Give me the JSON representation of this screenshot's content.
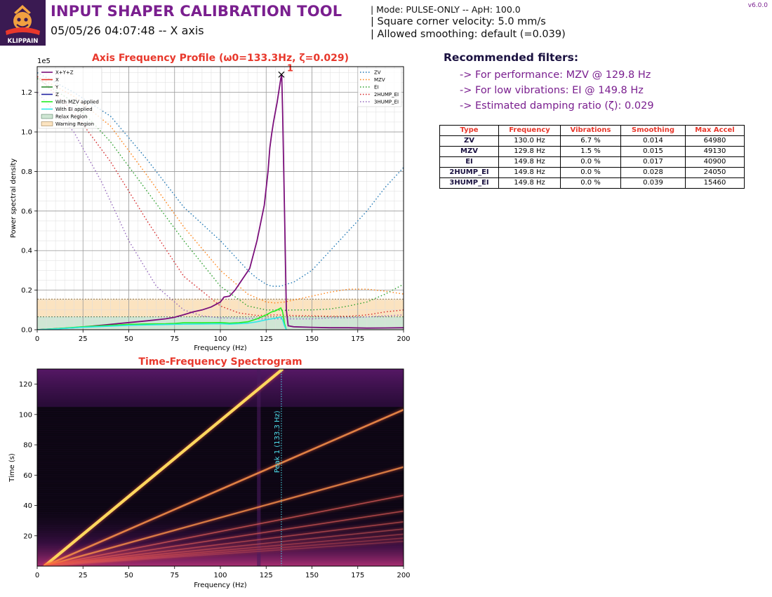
{
  "header": {
    "logo_text": "KLIPPAIN",
    "title": "INPUT SHAPER CALIBRATION TOOL",
    "subtitle": "05/05/26 04:07:48 -- X axis",
    "mode_line": "| Mode: PULSE-ONLY -- ApH: 100.0",
    "scv_line": "| Square corner velocity: 5.0 mm/s",
    "smoothing_line": "| Allowed smoothing: default (=0.039)",
    "version": "v6.0.0"
  },
  "recommendations": {
    "title": "Recommended filters:",
    "items": [
      "-> For performance: MZV @ 129.8 Hz",
      "-> For low vibrations: EI @ 149.8 Hz",
      "-> Estimated damping ratio (ζ): 0.029"
    ]
  },
  "shaper_table": {
    "headers": [
      "Type",
      "Frequency",
      "Vibrations",
      "Smoothing",
      "Max Accel"
    ],
    "rows": [
      [
        "ZV",
        "130.0 Hz",
        "6.7 %",
        "0.014",
        "64980"
      ],
      [
        "MZV",
        "129.8 Hz",
        "1.5 %",
        "0.015",
        "49130"
      ],
      [
        "EI",
        "149.8 Hz",
        "0.0 %",
        "0.017",
        "40900"
      ],
      [
        "2HUMP_EI",
        "149.8 Hz",
        "0.0 %",
        "0.028",
        "24050"
      ],
      [
        "3HUMP_EI",
        "149.8 Hz",
        "0.0 %",
        "0.039",
        "15460"
      ]
    ]
  },
  "colors": {
    "title_purple": "#7a1f8f",
    "chart_title_red": "#e8382c",
    "xyz": "#7b0f7b",
    "x": "#e8382c",
    "y": "#2e8b2e",
    "z": "#1f1fa0",
    "mzv_applied": "#22ee22",
    "ei_applied": "#2ee8e8",
    "relax_region": "#cfe6d4",
    "warning_region": "#fbe3c0",
    "zv": "#1f77b4",
    "mzv": "#ff7f0e",
    "ei": "#2ca02c",
    "2hump_ei": "#d62728",
    "3hump_ei": "#9467bd"
  },
  "chart_data": [
    {
      "type": "line",
      "title": "Axis Frequency Profile (ω0=133.3Hz, ζ=0.029)",
      "xlabel": "Frequency (Hz)",
      "ylabel": "Power spectral density",
      "y_exponent": "1e5",
      "xlim": [
        0,
        200
      ],
      "ylim": [
        0,
        1.33
      ],
      "x_ticks": [
        0,
        25,
        50,
        75,
        100,
        125,
        150,
        175,
        200
      ],
      "y_ticks": [
        0.0,
        0.2,
        0.4,
        0.6,
        0.8,
        1.0,
        1.2
      ],
      "grid": true,
      "legend_left": [
        "X+Y+Z",
        "X",
        "Y",
        "Z",
        "With MZV applied",
        "With EI applied",
        "Relax Region",
        "Warning Region"
      ],
      "legend_right": [
        "ZV",
        "MZV",
        "EI",
        "2HUMP_EI",
        "3HUMP_EI"
      ],
      "regions": {
        "relax": [
          0,
          0.065
        ],
        "warning": [
          0.065,
          0.155
        ]
      },
      "peak": {
        "label": "1",
        "x": 133.3,
        "y": 1.29
      },
      "series": [
        {
          "name": "X+Y+Z",
          "x": [
            0,
            10,
            20,
            30,
            40,
            50,
            60,
            70,
            75,
            80,
            85,
            90,
            95,
            100,
            102,
            105,
            108,
            112,
            116,
            120,
            124,
            126,
            127,
            128,
            129,
            130,
            131,
            132,
            133,
            133.5,
            134,
            135,
            136,
            137,
            140,
            150,
            160,
            170,
            180,
            190,
            200
          ],
          "y": [
            0.0,
            0.005,
            0.01,
            0.018,
            0.027,
            0.036,
            0.045,
            0.055,
            0.063,
            0.076,
            0.09,
            0.1,
            0.115,
            0.14,
            0.165,
            0.17,
            0.2,
            0.255,
            0.31,
            0.45,
            0.63,
            0.8,
            0.92,
            0.99,
            1.05,
            1.1,
            1.15,
            1.21,
            1.27,
            1.29,
            1.1,
            0.6,
            0.1,
            0.02,
            0.015,
            0.012,
            0.01,
            0.01,
            0.008,
            0.009,
            0.01
          ]
        },
        {
          "name": "With MZV applied",
          "x": [
            0,
            10,
            25,
            40,
            50,
            60,
            70,
            75,
            80,
            90,
            100,
            105,
            110,
            115,
            120,
            125,
            128,
            130,
            133,
            134,
            135,
            136
          ],
          "y": [
            0.0,
            0.005,
            0.015,
            0.022,
            0.027,
            0.029,
            0.03,
            0.032,
            0.035,
            0.035,
            0.036,
            0.033,
            0.035,
            0.04,
            0.055,
            0.075,
            0.09,
            0.095,
            0.11,
            0.09,
            0.03,
            0.0
          ]
        },
        {
          "name": "With EI applied",
          "x": [
            0,
            10,
            25,
            40,
            50,
            60,
            70,
            80,
            90,
            100,
            105,
            110,
            115,
            120,
            125,
            128,
            130,
            133,
            134,
            135,
            136
          ],
          "y": [
            0.0,
            0.004,
            0.012,
            0.018,
            0.022,
            0.024,
            0.026,
            0.028,
            0.029,
            0.03,
            0.028,
            0.03,
            0.033,
            0.04,
            0.05,
            0.055,
            0.058,
            0.065,
            0.05,
            0.02,
            0.0
          ]
        },
        {
          "name": "ZV",
          "x": [
            0,
            20,
            40,
            60,
            80,
            100,
            115,
            120,
            125,
            128,
            130,
            133,
            136,
            140,
            150,
            160,
            170,
            180,
            190,
            200
          ],
          "y": [
            1.3,
            1.2,
            1.08,
            0.86,
            0.62,
            0.45,
            0.3,
            0.26,
            0.23,
            0.22,
            0.22,
            0.22,
            0.23,
            0.24,
            0.3,
            0.4,
            0.5,
            0.6,
            0.72,
            0.82
          ]
        },
        {
          "name": "MZV",
          "x": [
            0,
            20,
            40,
            60,
            80,
            100,
            115,
            125,
            130,
            135,
            140,
            150,
            160,
            170,
            180,
            190,
            200
          ],
          "y": [
            1.28,
            1.18,
            1.03,
            0.78,
            0.52,
            0.3,
            0.18,
            0.14,
            0.135,
            0.14,
            0.15,
            0.17,
            0.19,
            0.205,
            0.205,
            0.195,
            0.18
          ]
        },
        {
          "name": "EI",
          "x": [
            0,
            20,
            40,
            60,
            80,
            100,
            115,
            125,
            130,
            135,
            140,
            150,
            160,
            170,
            180,
            190,
            200
          ],
          "y": [
            1.27,
            1.15,
            0.95,
            0.7,
            0.45,
            0.22,
            0.12,
            0.1,
            0.1,
            0.098,
            0.1,
            0.1,
            0.105,
            0.12,
            0.14,
            0.18,
            0.23
          ]
        },
        {
          "name": "2HUMP_EI",
          "x": [
            0,
            20,
            40,
            60,
            80,
            100,
            110,
            120,
            130,
            140,
            150,
            160,
            170,
            180,
            190,
            200
          ],
          "y": [
            1.28,
            1.1,
            0.85,
            0.55,
            0.27,
            0.12,
            0.085,
            0.072,
            0.075,
            0.072,
            0.07,
            0.068,
            0.068,
            0.075,
            0.09,
            0.1
          ]
        },
        {
          "name": "3HUMP_EI",
          "x": [
            0,
            20,
            35,
            50,
            65,
            80,
            90,
            100,
            110,
            120,
            130,
            140,
            150,
            160,
            170,
            180,
            190,
            200
          ],
          "y": [
            1.2,
            1.0,
            0.75,
            0.45,
            0.22,
            0.1,
            0.07,
            0.06,
            0.058,
            0.055,
            0.055,
            0.055,
            0.055,
            0.06,
            0.06,
            0.065,
            0.07,
            0.075
          ]
        }
      ]
    },
    {
      "type": "heatmap",
      "title": "Time-Frequency Spectrogram",
      "xlabel": "Frequency (Hz)",
      "ylabel": "Time (s)",
      "xlim": [
        0,
        200
      ],
      "ylim": [
        0,
        130
      ],
      "x_ticks": [
        0,
        25,
        50,
        75,
        100,
        125,
        150,
        175,
        200
      ],
      "y_ticks": [
        20,
        40,
        60,
        80,
        100,
        120
      ],
      "peak_line": {
        "x": 133.3,
        "label": "Peak 1 (133.3 Hz)"
      },
      "harmonic_slopes_hz_per_s": [
        1.0,
        1.9,
        3.0,
        4.2,
        5.4,
        6.7,
        8.0,
        9.3,
        10.6,
        12.0
      ]
    }
  ]
}
